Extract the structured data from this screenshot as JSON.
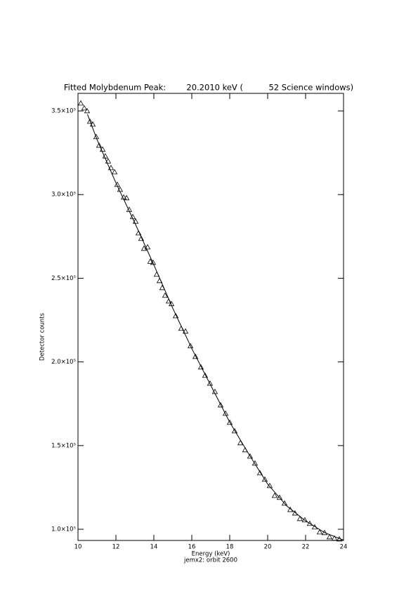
{
  "chart_data": {
    "type": "scatter",
    "title": "Fitted Molybdenum Peak:        20.2010 keV (          52 Science windows)",
    "x_label": "Energy (keV)",
    "subtitle": "jemx2: orbit 2600",
    "y_label": "Detector counts",
    "xlim": [
      10,
      24
    ],
    "ylim": [
      93300,
      360500
    ],
    "xticks": [
      10,
      12,
      14,
      16,
      18,
      20,
      22,
      24
    ],
    "yticks": [
      {
        "value": 100000,
        "label": "1.0×10⁵"
      },
      {
        "value": 150000,
        "label": "1.5×10⁵"
      },
      {
        "value": 200000,
        "label": "2.0×10⁵"
      },
      {
        "value": 250000,
        "label": "2.5×10⁵"
      },
      {
        "value": 300000,
        "label": "3.0×10⁵"
      },
      {
        "value": 350000,
        "label": "3.5×10⁵"
      }
    ],
    "grid": false,
    "series": [
      {
        "style": "markers",
        "marker": "triangle",
        "color": "#000000",
        "x": [
          10.15,
          10.33,
          10.48,
          10.63,
          10.78,
          10.96,
          11.11,
          11.3,
          11.44,
          11.59,
          11.74,
          11.93,
          12.07,
          12.22,
          12.41,
          12.56,
          12.7,
          12.89,
          13.04,
          13.19,
          13.33,
          13.48,
          13.67,
          13.81,
          13.96,
          14.15,
          14.3,
          14.44,
          14.59,
          14.78,
          14.93,
          15.15,
          15.44,
          15.67,
          15.93,
          16.19,
          16.48,
          16.7,
          16.96,
          17.22,
          17.52,
          17.78,
          18.0,
          18.26,
          18.56,
          18.81,
          19.07,
          19.33,
          19.59,
          19.85,
          20.11,
          20.37,
          20.63,
          20.89,
          21.19,
          21.44,
          21.7,
          21.96,
          22.22,
          22.48,
          22.74,
          23.0,
          23.26,
          23.52,
          23.78
        ],
        "values": [
          354600,
          351700,
          350000,
          343700,
          342000,
          334500,
          329400,
          327000,
          323000,
          320000,
          316000,
          313500,
          306000,
          303000,
          298400,
          298000,
          291000,
          286700,
          284000,
          277000,
          273700,
          267800,
          268600,
          260000,
          259400,
          252300,
          248500,
          244300,
          239700,
          236300,
          234700,
          227500,
          220000,
          218300,
          209500,
          203200,
          196900,
          191900,
          187200,
          182200,
          174200,
          169200,
          163800,
          158700,
          151600,
          147400,
          143600,
          139400,
          133600,
          129800,
          126000,
          120100,
          118900,
          115500,
          111700,
          109600,
          106300,
          105500,
          103400,
          101300,
          98300,
          97900,
          95400,
          94600,
          94100
        ]
      },
      {
        "style": "line",
        "color": "#000000",
        "x": [
          10.5,
          11,
          12,
          13,
          14,
          15,
          16,
          17,
          18,
          19,
          20,
          21,
          22,
          23,
          24
        ],
        "values": [
          348000,
          333000,
          307000,
          283000,
          258000,
          232000,
          208000,
          186000,
          164000,
          145000,
          127000,
          114000,
          105000,
          98000,
          93500
        ]
      }
    ]
  }
}
